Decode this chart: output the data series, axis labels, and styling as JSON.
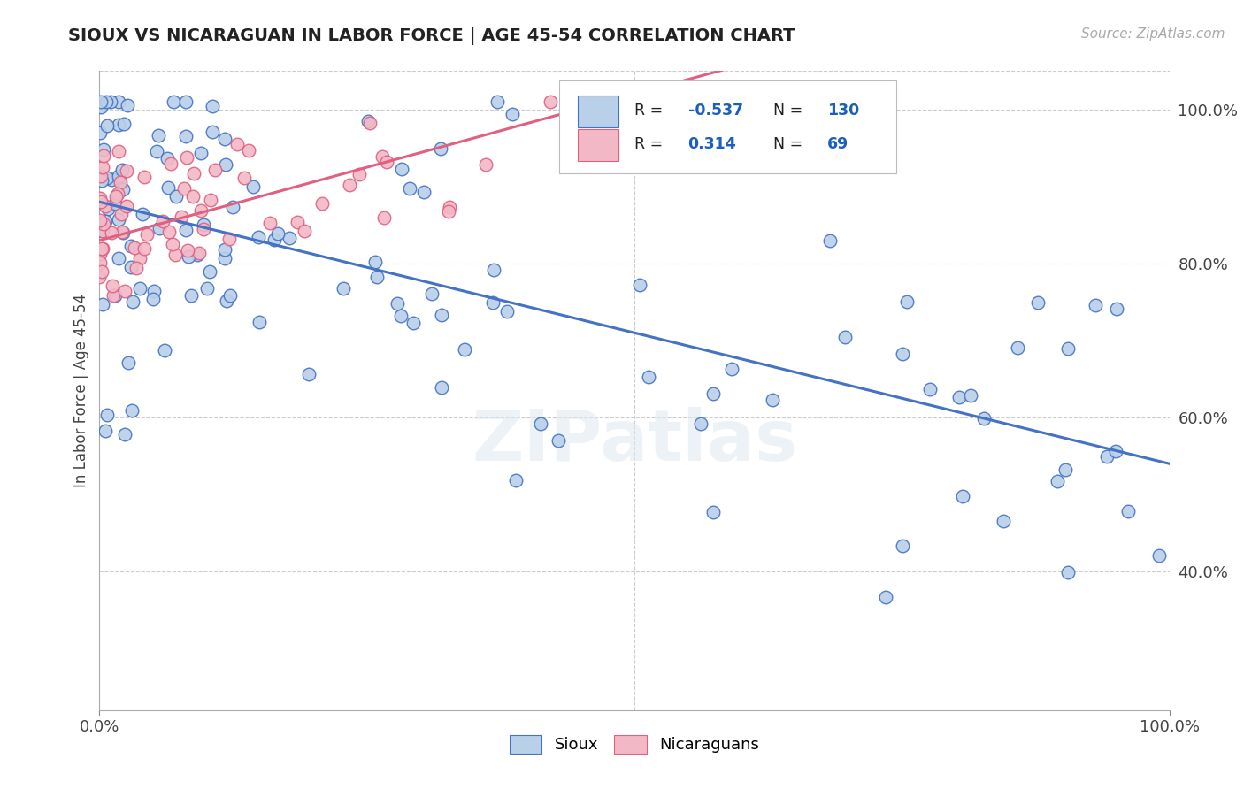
{
  "title": "SIOUX VS NICARAGUAN IN LABOR FORCE | AGE 45-54 CORRELATION CHART",
  "source_text": "Source: ZipAtlas.com",
  "ylabel": "In Labor Force | Age 45-54",
  "R_sioux": -0.537,
  "N_sioux": 130,
  "R_nicaraguan": 0.314,
  "N_nicaraguan": 69,
  "sioux_color": "#b8d0e8",
  "nicaraguan_color": "#f2b8c6",
  "sioux_line_color": "#4472c4",
  "nicaraguan_line_color": "#e06080",
  "watermark": "ZIPatlas",
  "background_color": "#ffffff",
  "plot_bg_color": "#ffffff",
  "grid_color": "#cccccc",
  "xlim": [
    0.0,
    1.0
  ],
  "ylim": [
    0.22,
    1.05
  ],
  "xtick_positions": [
    0.0,
    1.0
  ],
  "xtick_labels": [
    "0.0%",
    "100.0%"
  ],
  "ytick_positions": [
    0.4,
    0.6,
    0.8,
    1.0
  ],
  "ytick_labels": [
    "40.0%",
    "60.0%",
    "80.0%",
    "100.0%"
  ],
  "sioux_seed": 42,
  "nicaraguan_seed": 99,
  "legend_R_color": "#1a5fbd",
  "legend_N_color": "#1a5fbd"
}
